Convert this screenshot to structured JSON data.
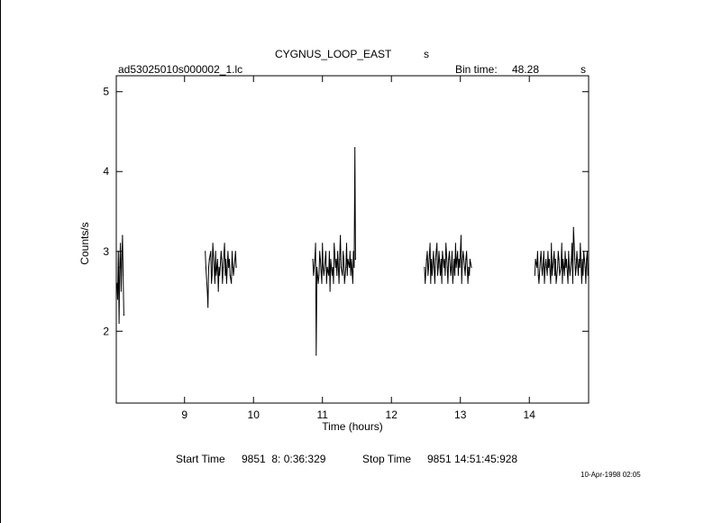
{
  "header": {
    "object": "CYGNUS_LOOP_EAST",
    "object_suffix": "s",
    "filename": "ad53025010s000002_1.lc",
    "bin_time_label": "Bin time:",
    "bin_time_value": "48.28",
    "bin_time_unit": "s"
  },
  "footer": {
    "start_label": "Start Time",
    "start_value": "9851  8: 0:36:329",
    "stop_label": "Stop Time",
    "stop_value": "9851 14:51:45:928",
    "timestamp": "10-Apr-1998 02:05"
  },
  "chart_data": {
    "type": "line",
    "xlabel": "Time (hours)",
    "ylabel": "Counts/s",
    "xlim": [
      8.01,
      14.86
    ],
    "ylim": [
      1.1,
      5.2
    ],
    "xticks": [
      9,
      10,
      11,
      12,
      13,
      14
    ],
    "yticks": [
      2,
      3,
      4,
      5
    ],
    "grid": false,
    "series": [
      {
        "x": [
          8.02,
          8.03,
          8.04,
          8.05,
          8.06,
          8.07,
          8.08,
          8.09,
          8.1,
          8.11,
          8.12,
          9.3,
          9.31,
          9.33,
          9.34,
          9.35,
          9.36,
          9.38,
          9.39,
          9.4,
          9.41,
          9.43,
          9.44,
          9.45,
          9.46,
          9.48,
          9.49,
          9.5,
          9.51,
          9.53,
          9.54,
          9.55,
          9.56,
          9.58,
          9.59,
          9.6,
          9.61,
          9.63,
          9.64,
          9.65,
          9.66,
          9.68,
          9.69,
          9.7,
          9.71,
          9.73,
          9.74,
          9.75,
          10.86,
          10.87,
          10.89,
          10.9,
          10.91,
          10.92,
          10.94,
          10.95,
          10.96,
          10.97,
          10.99,
          11.0,
          11.01,
          11.02,
          11.04,
          11.05,
          11.06,
          11.07,
          11.09,
          11.1,
          11.11,
          11.12,
          11.14,
          11.15,
          11.16,
          11.17,
          11.19,
          11.2,
          11.21,
          11.22,
          11.24,
          11.25,
          11.26,
          11.27,
          11.29,
          11.3,
          11.31,
          11.32,
          11.34,
          11.35,
          11.36,
          11.37,
          11.39,
          11.4,
          11.41,
          11.42,
          11.44,
          11.45,
          11.46,
          11.47,
          11.48,
          12.48,
          12.49,
          12.51,
          12.52,
          12.53,
          12.54,
          12.56,
          12.57,
          12.58,
          12.59,
          12.61,
          12.62,
          12.63,
          12.64,
          12.66,
          12.67,
          12.68,
          12.69,
          12.71,
          12.72,
          12.73,
          12.74,
          12.76,
          12.77,
          12.78,
          12.79,
          12.81,
          12.82,
          12.83,
          12.84,
          12.86,
          12.87,
          12.88,
          12.89,
          12.91,
          12.92,
          12.93,
          12.94,
          12.96,
          12.97,
          12.98,
          12.99,
          13.01,
          13.02,
          13.03,
          13.04,
          13.06,
          13.07,
          13.08,
          13.09,
          13.11,
          13.12,
          13.13,
          13.14,
          13.16,
          14.08,
          14.09,
          14.11,
          14.12,
          14.13,
          14.14,
          14.16,
          14.17,
          14.18,
          14.19,
          14.21,
          14.22,
          14.23,
          14.24,
          14.26,
          14.27,
          14.28,
          14.29,
          14.31,
          14.32,
          14.33,
          14.34,
          14.36,
          14.37,
          14.38,
          14.39,
          14.41,
          14.42,
          14.43,
          14.44,
          14.46,
          14.47,
          14.48,
          14.49,
          14.51,
          14.52,
          14.53,
          14.54,
          14.56,
          14.57,
          14.58,
          14.59,
          14.61,
          14.62,
          14.63,
          14.64,
          14.66,
          14.67,
          14.68,
          14.69,
          14.71,
          14.72,
          14.73,
          14.74,
          14.76,
          14.77,
          14.78,
          14.79,
          14.81,
          14.82,
          14.83,
          14.84,
          14.85
        ],
        "y": [
          2.6,
          2.4,
          3.0,
          2.1,
          2.8,
          3.1,
          2.5,
          2.9,
          3.2,
          2.7,
          2.2,
          3.0,
          2.8,
          2.5,
          2.3,
          2.8,
          2.9,
          3.0,
          2.6,
          2.7,
          3.1,
          2.8,
          2.6,
          3.0,
          2.7,
          2.9,
          2.5,
          2.8,
          2.7,
          3.0,
          2.9,
          2.6,
          2.8,
          3.1,
          2.7,
          2.9,
          2.6,
          3.0,
          2.8,
          2.9,
          2.7,
          2.6,
          3.0,
          2.8,
          2.7,
          2.9,
          3.0,
          2.8,
          2.9,
          2.7,
          2.9,
          3.1,
          1.7,
          2.8,
          2.6,
          2.7,
          3.0,
          2.9,
          2.6,
          3.1,
          2.8,
          2.7,
          2.9,
          3.0,
          2.6,
          2.8,
          2.7,
          3.0,
          2.5,
          2.9,
          2.7,
          2.8,
          2.6,
          3.1,
          2.8,
          2.9,
          2.7,
          3.0,
          2.6,
          2.9,
          3.2,
          2.8,
          2.7,
          3.0,
          2.9,
          2.6,
          2.8,
          3.1,
          2.7,
          2.9,
          2.8,
          3.0,
          2.7,
          2.9,
          2.6,
          3.0,
          2.8,
          4.3,
          2.9,
          2.8,
          2.6,
          2.9,
          3.0,
          2.7,
          2.8,
          3.1,
          2.6,
          2.9,
          2.7,
          3.0,
          2.8,
          2.6,
          2.9,
          3.1,
          2.7,
          2.8,
          3.0,
          2.7,
          2.9,
          2.6,
          3.0,
          2.8,
          2.9,
          2.7,
          3.1,
          2.8,
          2.6,
          2.9,
          3.0,
          2.7,
          2.8,
          3.0,
          2.6,
          2.9,
          2.7,
          3.1,
          2.8,
          3.0,
          2.7,
          2.9,
          2.8,
          3.2,
          2.6,
          2.9,
          3.0,
          2.8,
          2.7,
          2.9,
          3.0,
          2.6,
          2.8,
          2.7,
          2.9,
          2.8,
          2.7,
          2.9,
          2.8,
          3.0,
          2.7,
          2.6,
          2.9,
          3.0,
          2.8,
          2.7,
          3.0,
          2.6,
          2.8,
          2.9,
          2.7,
          3.0,
          2.8,
          2.9,
          2.6,
          3.1,
          2.7,
          2.8,
          3.0,
          2.7,
          2.9,
          2.6,
          2.8,
          3.0,
          2.9,
          2.7,
          2.8,
          3.1,
          2.6,
          2.9,
          2.7,
          3.0,
          2.8,
          2.9,
          2.6,
          3.0,
          2.8,
          2.7,
          2.9,
          3.1,
          2.6,
          3.3,
          2.9,
          2.7,
          2.8,
          3.0,
          2.7,
          2.9,
          2.8,
          3.1,
          2.6,
          2.9,
          2.7,
          3.0,
          2.8,
          2.6,
          2.9,
          3.0,
          2.7
        ]
      }
    ]
  }
}
